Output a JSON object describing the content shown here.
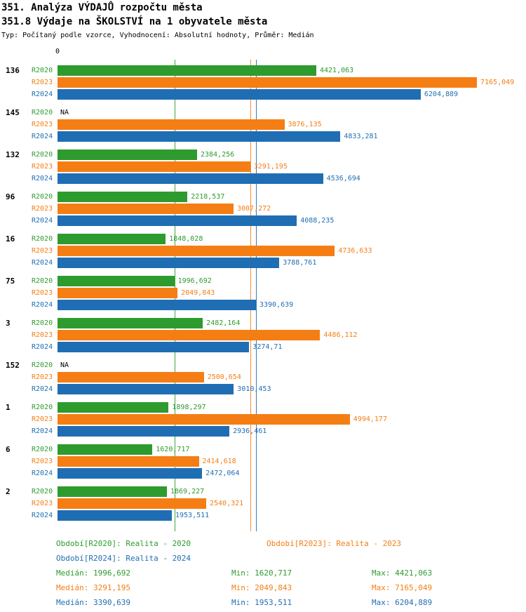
{
  "header": {
    "title": "351. Analýza VÝDAJŮ rozpočtu města",
    "subtitle": "351.8 Výdaje na ŠKOLSTVÍ na 1 obyvatele města",
    "meta": "Typ: Počítaný podle vzorce, Vyhodnocení: Absolutní hodnoty, Průměr: Medián"
  },
  "chart_data": {
    "type": "bar",
    "orientation": "horizontal",
    "x_axis": {
      "zero_label": "0",
      "min": 0,
      "max": 7400
    },
    "series": [
      {
        "id": "R2020",
        "label": "R2020",
        "color": "#2e9b2e"
      },
      {
        "id": "R2023",
        "label": "R2023",
        "color": "#f57e14"
      },
      {
        "id": "R2024",
        "label": "R2024",
        "color": "#1f6eb4"
      }
    ],
    "groups": [
      {
        "label": "136",
        "values": [
          4421.063,
          7165.049,
          6204.889
        ],
        "value_labels": [
          "4421,063",
          "7165,049",
          "6204,889"
        ]
      },
      {
        "label": "145",
        "values": [
          null,
          3876.135,
          4833.281
        ],
        "value_labels": [
          "NA",
          "3876,135",
          "4833,281"
        ]
      },
      {
        "label": "132",
        "values": [
          2384.256,
          3291.195,
          4536.694
        ],
        "value_labels": [
          "2384,256",
          "3291,195",
          "4536,694"
        ]
      },
      {
        "label": "96",
        "values": [
          2218.537,
          3007.272,
          4088.235
        ],
        "value_labels": [
          "2218,537",
          "3007,272",
          "4088,235"
        ]
      },
      {
        "label": "16",
        "values": [
          1848.028,
          4736.633,
          3788.761
        ],
        "value_labels": [
          "1848,028",
          "4736,633",
          "3788,761"
        ]
      },
      {
        "label": "75",
        "values": [
          1996.692,
          2049.843,
          3390.639
        ],
        "value_labels": [
          "1996,692",
          "2049,843",
          "3390,639"
        ]
      },
      {
        "label": "3",
        "values": [
          2482.164,
          4486.112,
          3274.71
        ],
        "value_labels": [
          "2482,164",
          "4486,112",
          "3274,71"
        ]
      },
      {
        "label": "152",
        "values": [
          null,
          2500.654,
          3010.453
        ],
        "value_labels": [
          "NA",
          "2500,654",
          "3010,453"
        ]
      },
      {
        "label": "1",
        "values": [
          1898.297,
          4994.177,
          2936.461
        ],
        "value_labels": [
          "1898,297",
          "4994,177",
          "2936,461"
        ]
      },
      {
        "label": "6",
        "values": [
          1620.717,
          2414.618,
          2472.064
        ],
        "value_labels": [
          "1620,717",
          "2414,618",
          "2472,064"
        ]
      },
      {
        "label": "2",
        "values": [
          1869.227,
          2540.321,
          1953.511
        ],
        "value_labels": [
          "1869,227",
          "2540,321",
          "1953,511"
        ]
      }
    ],
    "median_lines": [
      {
        "series": "R2020",
        "value": 1996.692
      },
      {
        "series": "R2023",
        "value": 3291.195
      },
      {
        "series": "R2024",
        "value": 3390.639
      }
    ]
  },
  "legend": [
    {
      "series": "R2020",
      "label": "Období[R2020]: Realita - 2020"
    },
    {
      "series": "R2023",
      "label": "Období[R2023]: Realita - 2023"
    },
    {
      "series": "R2024",
      "label": "Období[R2024]: Realita - 2024"
    }
  ],
  "stats": [
    {
      "series": "R2020",
      "median": "Medián: 1996,692",
      "min": "Min: 1620,717",
      "max": "Max: 4421,063"
    },
    {
      "series": "R2023",
      "median": "Medián: 3291,195",
      "min": "Min: 2049,843",
      "max": "Max: 7165,049"
    },
    {
      "series": "R2024",
      "median": "Medián: 3390,639",
      "min": "Min: 1953,511",
      "max": "Max: 6204,889"
    }
  ]
}
